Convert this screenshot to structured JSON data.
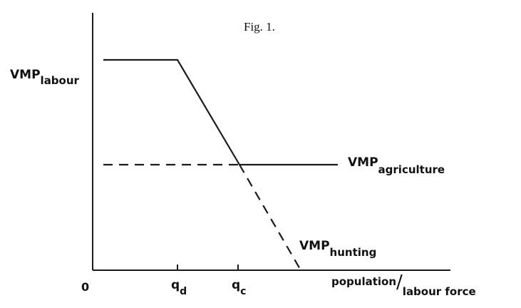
{
  "figure": {
    "caption": "Fig. 1.",
    "y_label": {
      "main": "VMP",
      "sub": "labour"
    },
    "origin_label": "0",
    "x_label": {
      "part1": "population",
      "separator": "/",
      "part2": "labour force"
    },
    "ticks": [
      {
        "main": "q",
        "sub": "d"
      },
      {
        "main": "q",
        "sub": "c"
      }
    ],
    "curves": [
      {
        "main": "VMP",
        "sub": "agriculture",
        "style": "solid after crossing, dashed before"
      },
      {
        "main": "VMP",
        "sub": "hunting",
        "style": "solid before crossing, dashed after"
      }
    ]
  }
}
